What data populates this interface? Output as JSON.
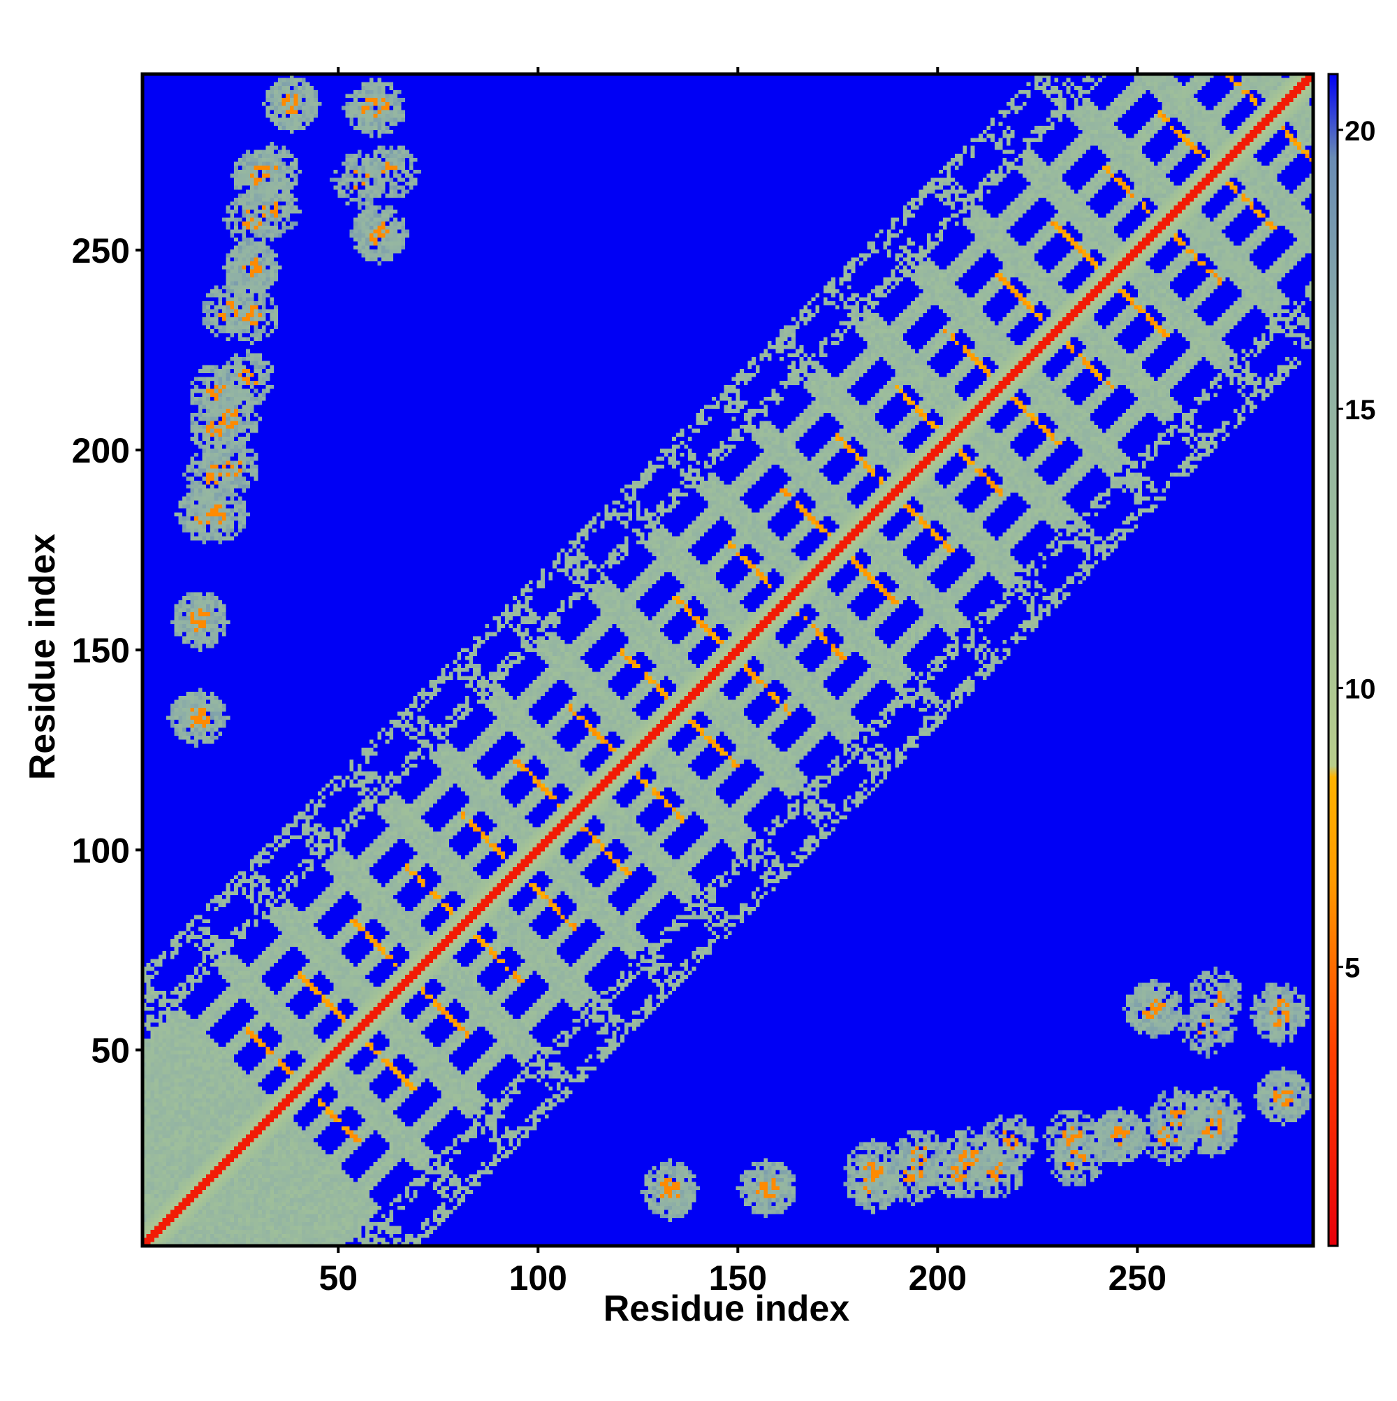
{
  "chart_data": {
    "type": "heatmap",
    "title": "",
    "xlabel": "Residue index",
    "ylabel": "Residue index",
    "xlim": [
      1,
      294
    ],
    "ylim": [
      1,
      294
    ],
    "x_ticks": [
      50,
      100,
      150,
      200,
      250
    ],
    "y_ticks": [
      50,
      100,
      150,
      200,
      250
    ],
    "colorbar": {
      "ticks": [
        5,
        10,
        15,
        20
      ],
      "range": [
        0,
        21
      ],
      "stops": [
        {
          "value": 0,
          "color": "#e8000b"
        },
        {
          "value": 3.5,
          "color": "#ff4000"
        },
        {
          "value": 6.5,
          "color": "#ff9900"
        },
        {
          "value": 8.4,
          "color": "#ffb300"
        },
        {
          "value": 8.6,
          "color": "#b8cd8c"
        },
        {
          "value": 12,
          "color": "#9fbf9a"
        },
        {
          "value": 16,
          "color": "#8fb0a6"
        },
        {
          "value": 19.5,
          "color": "#6a8cb4"
        },
        {
          "value": 21,
          "color": "#0000f5"
        }
      ]
    },
    "background_value": 21,
    "matrix_description_values": {
      "diagonal": 1.5,
      "helix_contact_lines": 6,
      "helix_bands": 12,
      "far_contacts": 14
    },
    "helix_starts": [
      35,
      48,
      61,
      75,
      88,
      102,
      116,
      131,
      145,
      159,
      172,
      185,
      198,
      212,
      226,
      240,
      253,
      267,
      280
    ],
    "far_contact_clusters": [
      {
        "x": 16,
        "y": 184
      },
      {
        "x": 18,
        "y": 194
      },
      {
        "x": 19,
        "y": 206
      },
      {
        "x": 19,
        "y": 215
      },
      {
        "x": 22,
        "y": 235
      },
      {
        "x": 28,
        "y": 246
      },
      {
        "x": 28,
        "y": 258
      },
      {
        "x": 30,
        "y": 269
      },
      {
        "x": 38,
        "y": 287
      },
      {
        "x": 15,
        "y": 158
      },
      {
        "x": 14,
        "y": 133
      },
      {
        "x": 60,
        "y": 286
      },
      {
        "x": 55,
        "y": 268
      },
      {
        "x": 60,
        "y": 255
      },
      {
        "x": 133,
        "y": 15
      },
      {
        "x": 157,
        "y": 15
      },
      {
        "x": 184,
        "y": 20
      },
      {
        "x": 196,
        "y": 23
      },
      {
        "x": 208,
        "y": 23
      },
      {
        "x": 218,
        "y": 27
      },
      {
        "x": 234,
        "y": 28
      },
      {
        "x": 246,
        "y": 28
      },
      {
        "x": 260,
        "y": 33
      },
      {
        "x": 270,
        "y": 33
      },
      {
        "x": 287,
        "y": 38
      },
      {
        "x": 270,
        "y": 63
      },
      {
        "x": 286,
        "y": 58
      },
      {
        "x": 254,
        "y": 60
      }
    ]
  }
}
